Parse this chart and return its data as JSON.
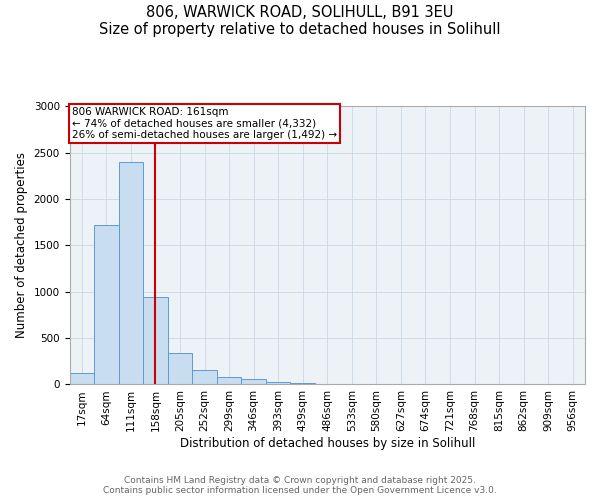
{
  "title_line1": "806, WARWICK ROAD, SOLIHULL, B91 3EU",
  "title_line2": "Size of property relative to detached houses in Solihull",
  "xlabel": "Distribution of detached houses by size in Solihull",
  "ylabel": "Number of detached properties",
  "bin_labels": [
    "17sqm",
    "64sqm",
    "111sqm",
    "158sqm",
    "205sqm",
    "252sqm",
    "299sqm",
    "346sqm",
    "393sqm",
    "439sqm",
    "486sqm",
    "533sqm",
    "580sqm",
    "627sqm",
    "674sqm",
    "721sqm",
    "768sqm",
    "815sqm",
    "862sqm",
    "909sqm",
    "956sqm"
  ],
  "bar_heights": [
    120,
    1720,
    2400,
    940,
    340,
    155,
    80,
    55,
    30,
    15,
    10,
    5,
    0,
    0,
    0,
    0,
    0,
    0,
    0,
    0,
    0
  ],
  "bar_color": "#c9ddf0",
  "bar_edge_color": "#5b9bd5",
  "red_line_index": 3.0,
  "red_line_color": "#cc0000",
  "annotation_line1": "806 WARWICK ROAD: 161sqm",
  "annotation_line2": "← 74% of detached houses are smaller (4,332)",
  "annotation_line3": "26% of semi-detached houses are larger (1,492) →",
  "annotation_box_color": "#cc0000",
  "ylim": [
    0,
    3000
  ],
  "yticks": [
    0,
    500,
    1000,
    1500,
    2000,
    2500,
    3000
  ],
  "grid_color": "#c8d8e8",
  "background_color": "#edf2f7",
  "footer_text": "Contains HM Land Registry data © Crown copyright and database right 2025.\nContains public sector information licensed under the Open Government Licence v3.0.",
  "title_fontsize": 10.5,
  "axis_label_fontsize": 8.5,
  "tick_fontsize": 7.5,
  "annotation_fontsize": 7.5,
  "footer_fontsize": 6.5
}
